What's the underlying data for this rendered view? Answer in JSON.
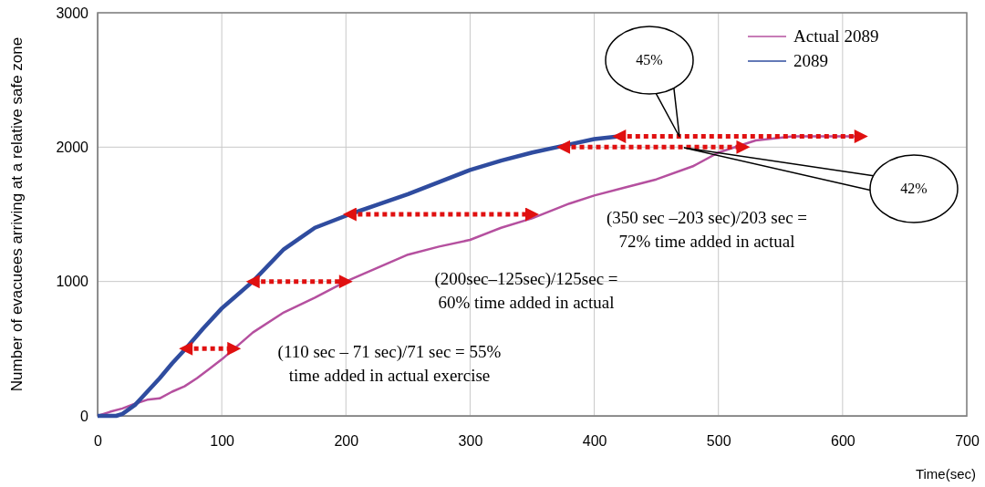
{
  "chart_data": {
    "type": "line",
    "xlabel": "Time(sec)",
    "ylabel": "Number of evacuees arriving at a relative safe zone",
    "xlim": [
      0,
      700
    ],
    "xticks": [
      0,
      100,
      200,
      300,
      400,
      500,
      600,
      700
    ],
    "ylim": [
      0,
      3000
    ],
    "yticks": [
      0,
      1000,
      2000,
      3000
    ],
    "grid": true,
    "legend": "top right",
    "series": [
      {
        "name": "Actual 2089",
        "color": "#b5509f",
        "x": [
          0,
          10,
          20,
          30,
          40,
          50,
          60,
          70,
          80,
          90,
          100,
          110,
          125,
          150,
          175,
          200,
          225,
          250,
          275,
          300,
          325,
          350,
          380,
          400,
          425,
          450,
          480,
          500,
          530,
          560,
          585,
          610
        ],
        "values": [
          0,
          30,
          55,
          90,
          120,
          130,
          180,
          220,
          280,
          350,
          420,
          500,
          620,
          770,
          880,
          1000,
          1100,
          1200,
          1260,
          1310,
          1400,
          1470,
          1580,
          1640,
          1700,
          1760,
          1860,
          1960,
          2050,
          2080,
          2080,
          2080
        ]
      },
      {
        "name": "2089",
        "color": "#2f4c9f",
        "x": [
          0,
          15,
          20,
          30,
          40,
          50,
          60,
          71,
          85,
          100,
          125,
          150,
          175,
          203,
          225,
          250,
          275,
          300,
          325,
          350,
          375,
          400,
          420
        ],
        "values": [
          0,
          0,
          15,
          80,
          180,
          280,
          390,
          500,
          650,
          800,
          1000,
          1240,
          1400,
          1500,
          1570,
          1650,
          1740,
          1830,
          1900,
          1960,
          2010,
          2060,
          2080
        ]
      },
      {
        "type": "line",
        "color": "#e01010",
        "line_style": "dotted",
        "x": [
          71,
          110
        ],
        "values": [
          500,
          500
        ]
      },
      {
        "type": "line",
        "color": "#e01010",
        "line_style": "dotted",
        "x": [
          125,
          200
        ],
        "values": [
          1000,
          1000
        ]
      },
      {
        "type": "line",
        "color": "#e01010",
        "line_style": "dotted",
        "x": [
          203,
          350
        ],
        "values": [
          1500,
          1500
        ]
      },
      {
        "type": "line",
        "color": "#e01010",
        "line_style": "dotted",
        "x": [
          375,
          520
        ],
        "values": [
          2000,
          2000
        ]
      },
      {
        "type": "line",
        "color": "#e01010",
        "line_style": "dotted",
        "x": [
          420,
          615
        ],
        "values": [
          2080,
          2080
        ]
      }
    ],
    "annotations": [
      "(110 sec – 71 sec)/71 sec = 55%\ntime added in actual exercise",
      "(200sec–125sec)/125sec =\n60% time added in actual",
      "(350 sec –203 sec)/203 sec =\n72% time added in actual",
      "45%",
      "42%"
    ]
  }
}
